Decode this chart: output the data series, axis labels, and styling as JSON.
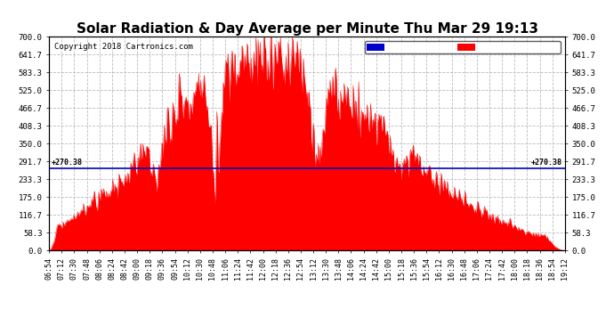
{
  "title": "Solar Radiation & Day Average per Minute Thu Mar 29 19:13",
  "copyright": "Copyright 2018 Cartronics.com",
  "median_value": 270.38,
  "y_min": 0.0,
  "y_max": 700.0,
  "y_ticks": [
    0.0,
    58.3,
    116.7,
    175.0,
    233.3,
    291.7,
    350.0,
    408.3,
    466.7,
    525.0,
    583.3,
    641.7,
    700.0
  ],
  "fill_color": "#FF0000",
  "median_line_color": "#0000BB",
  "background_color": "#FFFFFF",
  "grid_color": "#BBBBBB",
  "title_fontsize": 11,
  "legend_median_color": "#0000CC",
  "legend_radiation_color": "#FF0000",
  "x_tick_labels": [
    "06:54",
    "07:12",
    "07:30",
    "07:48",
    "08:06",
    "08:24",
    "08:42",
    "09:00",
    "09:18",
    "09:36",
    "09:54",
    "10:12",
    "10:30",
    "10:48",
    "11:06",
    "11:24",
    "11:42",
    "12:00",
    "12:18",
    "12:36",
    "12:54",
    "13:12",
    "13:30",
    "13:48",
    "14:06",
    "14:24",
    "14:42",
    "15:00",
    "15:18",
    "15:36",
    "15:54",
    "16:12",
    "16:30",
    "16:48",
    "17:06",
    "17:24",
    "17:42",
    "18:00",
    "18:18",
    "18:36",
    "18:54",
    "19:12"
  ]
}
